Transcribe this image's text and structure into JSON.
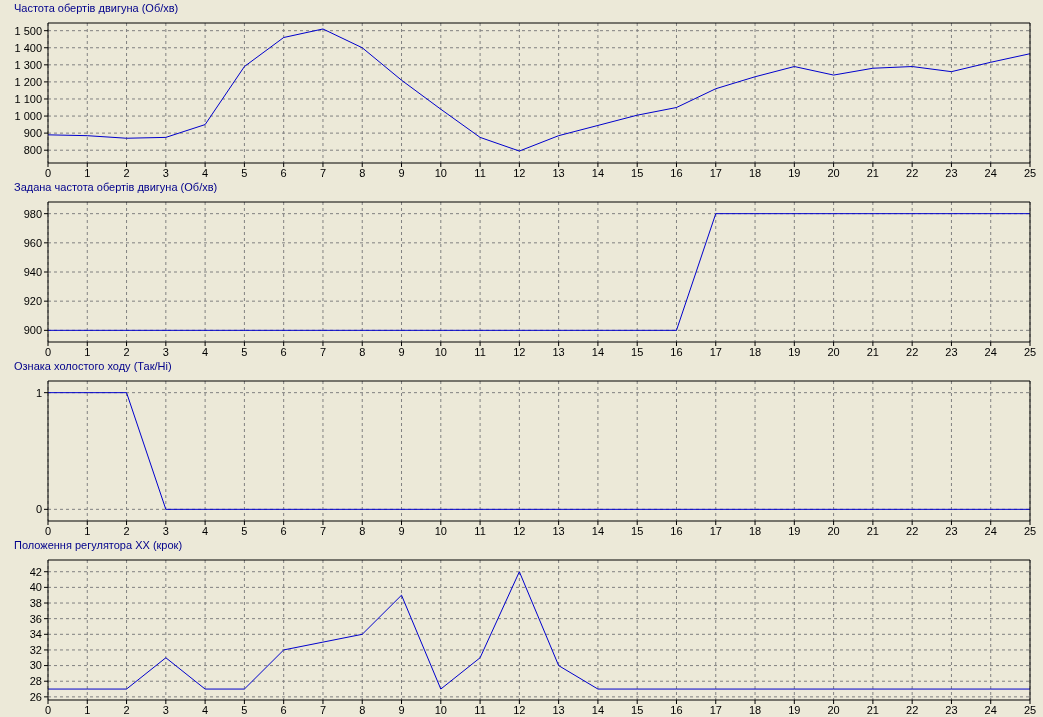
{
  "chart_data": [
    {
      "type": "line",
      "title": "Частота обертів двигуна (Об/хв)",
      "x": [
        0,
        1,
        2,
        3,
        4,
        5,
        6,
        7,
        8,
        9,
        10,
        11,
        12,
        13,
        14,
        15,
        16,
        17,
        18,
        19,
        20,
        21,
        22,
        23,
        24,
        25
      ],
      "series": [
        {
          "color": "#0000cc",
          "values": [
            890,
            885,
            870,
            875,
            950,
            1290,
            1460,
            1510,
            1400,
            1210,
            1040,
            875,
            795,
            885,
            945,
            1005,
            1050,
            1160,
            1230,
            1290,
            1240,
            1280,
            1290,
            1260,
            1315,
            1365
          ]
        }
      ],
      "xlim": [
        0,
        25
      ],
      "xticks": [
        0,
        1,
        2,
        3,
        4,
        5,
        6,
        7,
        8,
        9,
        10,
        11,
        12,
        13,
        14,
        15,
        16,
        17,
        18,
        19,
        20,
        21,
        22,
        23,
        24,
        25
      ],
      "ylim": [
        725,
        1545
      ],
      "yticks": [
        800,
        900,
        {
          "value": 1000,
          "label": "1 000"
        },
        {
          "value": 1100,
          "label": "1 100"
        },
        {
          "value": 1200,
          "label": "1 200"
        },
        {
          "value": 1300,
          "label": "1 300"
        },
        {
          "value": 1400,
          "label": "1 400"
        },
        {
          "value": 1500,
          "label": "1 500"
        }
      ],
      "grid": true,
      "line_style": "solid"
    },
    {
      "type": "line",
      "title": "Задана частота обертів двигуна (Об/хв)",
      "x": [
        0,
        16,
        17,
        25
      ],
      "series": [
        {
          "color": "#0000cc",
          "values": [
            900,
            900,
            980,
            980
          ]
        }
      ],
      "xlim": [
        0,
        25
      ],
      "xticks": [
        0,
        1,
        2,
        3,
        4,
        5,
        6,
        7,
        8,
        9,
        10,
        11,
        12,
        13,
        14,
        15,
        16,
        17,
        18,
        19,
        20,
        21,
        22,
        23,
        24,
        25
      ],
      "ylim": [
        892,
        988
      ],
      "yticks": [
        900,
        920,
        940,
        960,
        980
      ],
      "grid": true,
      "line_style": "solid"
    },
    {
      "type": "line",
      "title": "Ознака холостого ходу (Так/Ні)",
      "x": [
        0,
        2,
        3,
        25
      ],
      "series": [
        {
          "color": "#0000cc",
          "values": [
            1,
            1,
            0,
            0
          ]
        }
      ],
      "xlim": [
        0,
        25
      ],
      "xticks": [
        0,
        1,
        2,
        3,
        4,
        5,
        6,
        7,
        8,
        9,
        10,
        11,
        12,
        13,
        14,
        15,
        16,
        17,
        18,
        19,
        20,
        21,
        22,
        23,
        24,
        25
      ],
      "ylim": [
        -0.1,
        1.1
      ],
      "yticks": [
        0,
        1
      ],
      "grid": true,
      "line_style": "solid"
    },
    {
      "type": "line",
      "title": "Положення регулятора ХХ (крок)",
      "x": [
        0,
        1,
        2,
        3,
        4,
        5,
        6,
        7,
        8,
        9,
        10,
        11,
        12,
        13,
        14,
        15,
        16,
        17,
        18,
        19,
        20,
        21,
        22,
        23,
        24,
        25
      ],
      "series": [
        {
          "color": "#0000cc",
          "values": [
            27,
            27,
            27,
            31,
            27,
            27,
            32,
            33,
            34,
            39,
            27,
            31,
            42,
            30,
            27,
            27,
            27,
            27,
            27,
            27,
            27,
            27,
            27,
            27,
            27,
            27
          ]
        }
      ],
      "xlim": [
        0,
        25
      ],
      "xticks": [
        0,
        1,
        2,
        3,
        4,
        5,
        6,
        7,
        8,
        9,
        10,
        11,
        12,
        13,
        14,
        15,
        16,
        17,
        18,
        19,
        20,
        21,
        22,
        23,
        24,
        25
      ],
      "ylim": [
        25.6,
        43.5
      ],
      "yticks": [
        26,
        28,
        30,
        32,
        34,
        36,
        38,
        40,
        42
      ],
      "grid": true,
      "line_style": "solid"
    }
  ]
}
